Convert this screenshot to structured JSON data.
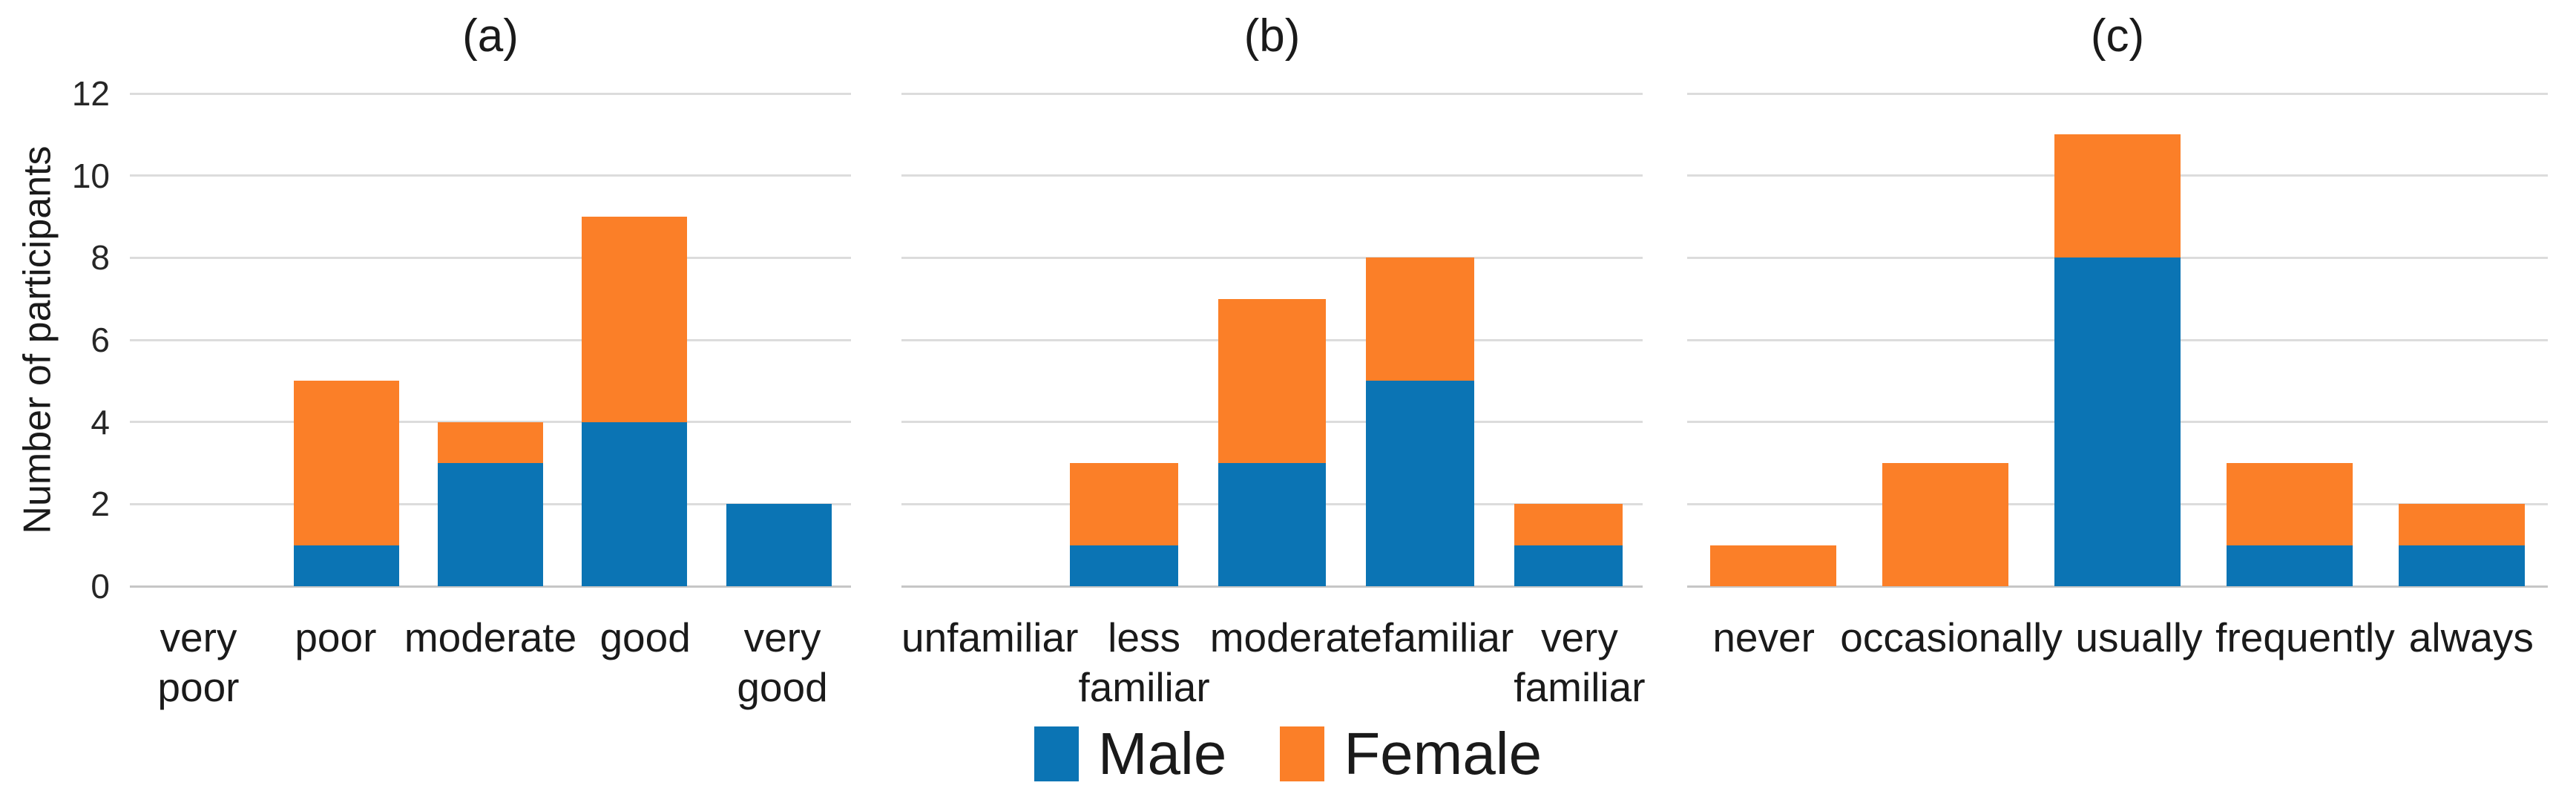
{
  "figure": {
    "ylabel": "Number of participants",
    "axis": {
      "ylim": [
        0,
        12
      ],
      "yticks": [
        0,
        2,
        4,
        6,
        8,
        10,
        12
      ]
    },
    "colors": {
      "male": "#0b74b4",
      "female": "#fb7f28",
      "gridline": "#dcdcdc",
      "axisline": "#c6c6c6"
    },
    "legend": [
      {
        "label": "Male",
        "color": "#0b74b4"
      },
      {
        "label": "Female",
        "color": "#fb7f28"
      }
    ]
  },
  "chart_data": [
    {
      "type": "bar",
      "stacked": true,
      "title": "(a)",
      "categories": [
        "very poor",
        "poor",
        "moderate",
        "good",
        "very good"
      ],
      "series": [
        {
          "name": "Male",
          "values": [
            0,
            1,
            3,
            4,
            2
          ]
        },
        {
          "name": "Female",
          "values": [
            0,
            4,
            1,
            5,
            0
          ]
        }
      ],
      "xlabel": "",
      "ylabel": "Number of participants",
      "ylim": [
        0,
        12
      ],
      "grid": true,
      "legend_position": "bottom"
    },
    {
      "type": "bar",
      "stacked": true,
      "title": "(b)",
      "categories": [
        "unfamiliar",
        "less\nfamiliar",
        "moderate",
        "familiar",
        "very\nfamiliar"
      ],
      "series": [
        {
          "name": "Male",
          "values": [
            0,
            1,
            3,
            5,
            1
          ]
        },
        {
          "name": "Female",
          "values": [
            0,
            2,
            4,
            3,
            1
          ]
        }
      ],
      "xlabel": "",
      "ylabel": "Number of participants",
      "ylim": [
        0,
        12
      ],
      "grid": true,
      "legend_position": "bottom"
    },
    {
      "type": "bar",
      "stacked": true,
      "title": "(c)",
      "categories": [
        "never",
        "occasionally",
        "usually",
        "frequently",
        "always"
      ],
      "series": [
        {
          "name": "Male",
          "values": [
            0,
            0,
            8,
            1,
            1
          ]
        },
        {
          "name": "Female",
          "values": [
            1,
            3,
            3,
            2,
            1
          ]
        }
      ],
      "xlabel": "",
      "ylabel": "Number of participants",
      "ylim": [
        0,
        12
      ],
      "grid": true,
      "legend_position": "bottom"
    }
  ]
}
